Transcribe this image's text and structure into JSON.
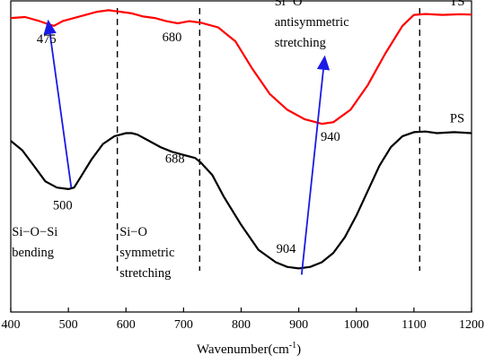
{
  "chart_data": {
    "type": "line",
    "xlabel": "Wavenumber(cm",
    "xlabel_sup": "-1",
    "xlabel_close": ")",
    "xlim": [
      400,
      1200
    ],
    "x_ticks": [
      400,
      500,
      600,
      700,
      800,
      900,
      1000,
      1100,
      1200
    ],
    "y_ticks_shown": false,
    "series": [
      {
        "name": "TS",
        "color": "#ff0000",
        "x": [
          400,
          425,
          450,
          465,
          475,
          490,
          510,
          530,
          550,
          570,
          590,
          610,
          630,
          650,
          670,
          690,
          710,
          730,
          760,
          790,
          820,
          850,
          880,
          910,
          940,
          960,
          990,
          1020,
          1050,
          1080,
          1100,
          1120,
          1150,
          1180,
          1200
        ],
        "y": [
          0.945,
          0.948,
          0.935,
          0.925,
          0.92,
          0.935,
          0.945,
          0.955,
          0.965,
          0.97,
          0.965,
          0.96,
          0.95,
          0.945,
          0.935,
          0.928,
          0.935,
          0.93,
          0.915,
          0.87,
          0.78,
          0.7,
          0.65,
          0.62,
          0.605,
          0.61,
          0.65,
          0.73,
          0.83,
          0.92,
          0.955,
          0.958,
          0.955,
          0.957,
          0.956
        ]
      },
      {
        "name": "PS",
        "color": "#000000",
        "x": [
          400,
          420,
          440,
          460,
          480,
          500,
          510,
          520,
          540,
          560,
          580,
          600,
          610,
          620,
          640,
          660,
          680,
          700,
          720,
          730,
          750,
          770,
          800,
          830,
          860,
          880,
          900,
          920,
          940,
          960,
          980,
          1000,
          1020,
          1040,
          1060,
          1080,
          1100,
          1120,
          1140,
          1170,
          1200
        ],
        "y": [
          0.55,
          0.52,
          0.47,
          0.42,
          0.4,
          0.395,
          0.4,
          0.43,
          0.49,
          0.54,
          0.565,
          0.575,
          0.575,
          0.57,
          0.55,
          0.53,
          0.515,
          0.505,
          0.495,
          0.48,
          0.44,
          0.37,
          0.28,
          0.2,
          0.16,
          0.145,
          0.14,
          0.145,
          0.16,
          0.19,
          0.24,
          0.31,
          0.39,
          0.47,
          0.53,
          0.565,
          0.578,
          0.58,
          0.575,
          0.578,
          0.575
        ]
      }
    ],
    "dashed_lines_x": [
      585,
      728,
      1110
    ],
    "arrows": [
      {
        "from": [
          505,
          0.4
        ],
        "to": [
          465,
          0.935
        ]
      },
      {
        "from": [
          905,
          0.12
        ],
        "to": [
          945,
          0.82
        ]
      }
    ],
    "peak_labels": [
      {
        "text": "475",
        "x": 462,
        "y": 0.865
      },
      {
        "text": "680",
        "x": 680,
        "y": 0.87
      },
      {
        "text": "940",
        "x": 955,
        "y": 0.55
      },
      {
        "text": "500",
        "x": 490,
        "y": 0.33
      },
      {
        "text": "688",
        "x": 685,
        "y": 0.48
      },
      {
        "text": "904",
        "x": 878,
        "y": 0.19
      }
    ],
    "series_labels": [
      {
        "text": "TS",
        "x": 1175,
        "y": 0.985
      },
      {
        "text": "PS",
        "x": 1175,
        "y": 0.61
      }
    ],
    "annotations": [
      {
        "lines": [
          "Si−O−Si",
          "bending"
        ],
        "x": 402,
        "y": 0.245
      },
      {
        "lines": [
          "Si−O",
          "symmetric",
          "stretching"
        ],
        "x": 589,
        "y": 0.245
      },
      {
        "lines": [
          "Si−O",
          "antisymmetric",
          "stretching"
        ],
        "x": 858,
        "y": 0.985
      }
    ]
  }
}
